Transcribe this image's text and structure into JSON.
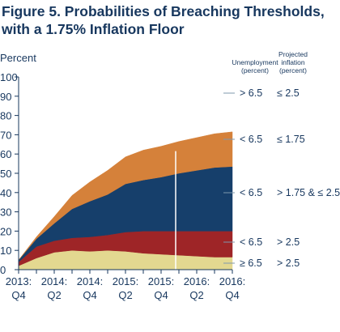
{
  "title_lines": [
    "Figure 5. Probabilities of Breaching Thresholds,",
    "with a 1.75% Inflation Floor"
  ],
  "chart_data": {
    "type": "area",
    "stacked": true,
    "ylabel": "Percent",
    "ylim": [
      0,
      100
    ],
    "yticks": [
      0,
      10,
      20,
      30,
      40,
      50,
      60,
      70,
      80,
      90,
      100
    ],
    "x": [
      "2013:Q4",
      "2014:Q1",
      "2014:Q2",
      "2014:Q3",
      "2014:Q4",
      "2015:Q1",
      "2015:Q2",
      "2015:Q3",
      "2015:Q4",
      "2016:Q1",
      "2016:Q2",
      "2016:Q3",
      "2016:Q4"
    ],
    "xtick_labels": [
      {
        "top": "2013:",
        "bottom": "Q4"
      },
      {
        "top": "2014:",
        "bottom": "Q2"
      },
      {
        "top": "2014:",
        "bottom": "Q4"
      },
      {
        "top": "2015:",
        "bottom": "Q2"
      },
      {
        "top": "2015:",
        "bottom": "Q4"
      },
      {
        "top": "2016:",
        "bottom": "Q2"
      },
      {
        "top": "2016:",
        "bottom": "Q4"
      }
    ],
    "legend_headers": {
      "unemployment": [
        "Unemployment",
        "(percent)"
      ],
      "inflation": [
        "Projected",
        "inflation",
        "(percent)"
      ]
    },
    "series": [
      {
        "unemployment": "≥ 6.5",
        "inflation": "> 2.5",
        "color": "#e3d890",
        "values": [
          2,
          6,
          9,
          10,
          9.5,
          10,
          9.5,
          8.5,
          8,
          7.5,
          7,
          6.5,
          6.5
        ]
      },
      {
        "unemployment": "< 6.5",
        "inflation": "> 2.5",
        "color": "#9e2527",
        "values": [
          2,
          6,
          6,
          6.5,
          7.5,
          8,
          10,
          11.5,
          12,
          12.5,
          13,
          13.5,
          13.5
        ]
      },
      {
        "unemployment": "< 6.5",
        "inflation": "> 1.75 & ≤ 2.5",
        "color": "#163f6b",
        "values": [
          1,
          4,
          9,
          15,
          18.5,
          21,
          25,
          26.5,
          28,
          30,
          31.5,
          33,
          33.5
        ]
      },
      {
        "unemployment": "< 6.5",
        "inflation": "≤ 1.75",
        "color": "#d5813a",
        "values": [
          0,
          1,
          3.5,
          7,
          10,
          12.5,
          14,
          15.5,
          16,
          16.5,
          17,
          17.5,
          18
        ]
      },
      {
        "unemployment": "> 6.5",
        "inflation": "≤ 2.5",
        "color": null,
        "values": null
      }
    ],
    "marker": {
      "type": "vertical-line",
      "x": "2015:Q4",
      "color": "#ffffff"
    },
    "colors": {
      "axis": "#17375e",
      "background": "#ffffff"
    }
  }
}
